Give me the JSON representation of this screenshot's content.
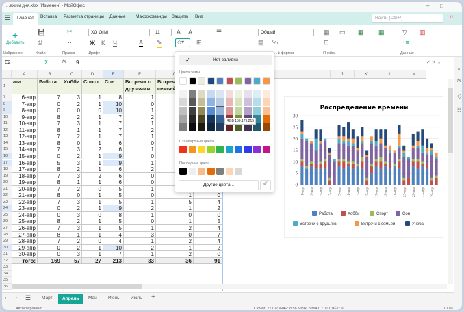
{
  "window": {
    "title": "...ежим дня.xlsx [Изменен] - МойОфис",
    "minimize": "–",
    "maximize": "□"
  },
  "tabs": [
    {
      "label": "Главная",
      "active": true
    },
    {
      "label": "Вставка"
    },
    {
      "label": "Разметка страницы"
    },
    {
      "label": "Данные"
    },
    {
      "label": "Макрокоманды"
    },
    {
      "label": "Защита"
    },
    {
      "label": "Вид"
    }
  ],
  "search": {
    "placeholder": "Найти (Ctrl+/)"
  },
  "user": {
    "initial": "U"
  },
  "ribbon": {
    "add_label": "Добавить",
    "groups": [
      "Избранное",
      "Файл",
      "Правка",
      "Шрифт",
      "...й формат",
      "Ячейки",
      "Данные"
    ],
    "font": "XO Oriel",
    "font_size": "11",
    "number_format": "Общий",
    "bold": "Ж",
    "italic": "К",
    "underline": "Ч"
  },
  "formula": {
    "cell_ref": "E2",
    "value": "9"
  },
  "columns": [
    "A",
    "B",
    "C",
    "D",
    "E",
    "F",
    "G",
    "H",
    "I",
    "J",
    "K",
    "L",
    "M"
  ],
  "header_row": {
    "num": "1",
    "cells": [
      "ата",
      "Работа",
      "Хобби",
      "Спорт",
      "Сон",
      "Встречи с друзьями",
      "Встречи с семьей",
      ""
    ]
  },
  "rows": [
    {
      "num": "7",
      "cells": [
        "6-апр",
        "7",
        "3",
        "1",
        "8",
        "1",
        "",
        ""
      ]
    },
    {
      "num": "8",
      "cells": [
        "7-апр",
        "0",
        "2",
        "1",
        "10",
        "0",
        "",
        ""
      ],
      "hl": true
    },
    {
      "num": "9",
      "cells": [
        "8-апр",
        "0",
        "0",
        "0",
        "10",
        "1",
        "",
        ""
      ],
      "hl": true
    },
    {
      "num": "10",
      "cells": [
        "9-апр",
        "8",
        "2",
        "1",
        "7",
        "2",
        "",
        ""
      ]
    },
    {
      "num": "11",
      "cells": [
        "10-апр",
        "7",
        "3",
        "1",
        "7",
        "1",
        "",
        ""
      ]
    },
    {
      "num": "12",
      "cells": [
        "11-апр",
        "8",
        "1",
        "1",
        "7",
        "2",
        "",
        ""
      ]
    },
    {
      "num": "13",
      "cells": [
        "12-апр",
        "7",
        "2",
        "1",
        "7",
        "1",
        "",
        ""
      ]
    },
    {
      "num": "14",
      "cells": [
        "13-апр",
        "8",
        "0",
        "1",
        "6",
        "0",
        "",
        ""
      ]
    },
    {
      "num": "15",
      "cells": [
        "14-апр",
        "7",
        "3",
        "2",
        "6",
        "1",
        "",
        ""
      ]
    },
    {
      "num": "16",
      "cells": [
        "15-апр",
        "0",
        "2",
        "1",
        "9",
        "0",
        "",
        ""
      ],
      "hl": true
    },
    {
      "num": "17",
      "cells": [
        "16-апр",
        "5",
        "3",
        "1",
        "9",
        "1",
        "",
        ""
      ],
      "hl": true
    },
    {
      "num": "18",
      "cells": [
        "17-апр",
        "8",
        "2",
        "1",
        "6",
        "2",
        "",
        ""
      ]
    },
    {
      "num": "19",
      "cells": [
        "18-апр",
        "7",
        "3",
        "2",
        "6",
        "0",
        "",
        ""
      ]
    },
    {
      "num": "20",
      "cells": [
        "19-апр",
        "8",
        "1",
        "1",
        "6",
        "0",
        "",
        ""
      ]
    },
    {
      "num": "21",
      "cells": [
        "20-апр",
        "7",
        "2",
        "0",
        "5",
        "1",
        "",
        ""
      ]
    },
    {
      "num": "22",
      "cells": [
        "21-апр",
        "8",
        "0",
        "1",
        "5",
        "0",
        "1",
        "0"
      ]
    },
    {
      "num": "23",
      "cells": [
        "22-апр",
        "7",
        "3",
        "1",
        "5",
        "1",
        "5",
        "4"
      ]
    },
    {
      "num": "24",
      "cells": [
        "23-апр",
        "0",
        "2",
        "1",
        "9",
        "2",
        "1",
        "2"
      ],
      "hl": true
    },
    {
      "num": "25",
      "cells": [
        "24-апр",
        "0",
        "3",
        "0",
        "8",
        "1",
        "0",
        "0"
      ]
    },
    {
      "num": "26",
      "cells": [
        "25-апр",
        "8",
        "2",
        "1",
        "5",
        "0",
        "1",
        "5"
      ]
    },
    {
      "num": "27",
      "cells": [
        "26-апр",
        "7",
        "3",
        "1",
        "5",
        "1",
        "2",
        "4"
      ]
    },
    {
      "num": "28",
      "cells": [
        "27-апр",
        "8",
        "1",
        "1",
        "4",
        "3",
        "0",
        "7"
      ]
    },
    {
      "num": "29",
      "cells": [
        "28-апр",
        "7",
        "2",
        "0",
        "4",
        "1",
        "2",
        "4"
      ]
    },
    {
      "num": "30",
      "cells": [
        "29-апр",
        "0",
        "2",
        "1",
        "10",
        "2",
        "1",
        "2"
      ],
      "hl": true
    },
    {
      "num": "31",
      "cells": [
        "30-апр",
        "0",
        "3",
        "1",
        "7",
        "1",
        "2",
        "0"
      ]
    }
  ],
  "total_row": {
    "num": "32",
    "cells": [
      "того:",
      "169",
      "57",
      "27",
      "213",
      "33",
      "36",
      "91"
    ]
  },
  "empty_rows": [
    "33",
    "34",
    "35",
    "36"
  ],
  "fill_popup": {
    "no_fill": "Нет заливки",
    "theme_label": "Цвета темы",
    "standard_label": "Стандартные цвета",
    "recent_label": "Последние цвета",
    "more_colors": "Другие цвета...",
    "tooltip": "RGB 150,179,215",
    "theme": [
      "#ffffff",
      "#000000",
      "#eeece1",
      "#1f497d",
      "#4f81bd",
      "#c0504d",
      "#9bbb59",
      "#8064a2",
      "#4bacc6",
      "#f79646"
    ],
    "shades": [
      [
        "#f2f2f2",
        "#7f7f7f",
        "#ddd9c3",
        "#c6d9f0",
        "#dbe5f1",
        "#f2dcdb",
        "#ebf1dd",
        "#e5e0ec",
        "#dbeef3",
        "#fdeada"
      ],
      [
        "#d8d8d8",
        "#595959",
        "#c4bd97",
        "#8db3e2",
        "#b8cce4",
        "#e5b9b7",
        "#d7e3bc",
        "#ccc1d9",
        "#b7dde8",
        "#fbd5b5"
      ],
      [
        "#bfbfbf",
        "#3f3f3f",
        "#938953",
        "#548dd4",
        "#95b3d7",
        "#d99694",
        "#c3d69b",
        "#b2a2c7",
        "#92cddc",
        "#fac08f"
      ],
      [
        "#a5a5a5",
        "#262626",
        "#494429",
        "#17365d",
        "#366092",
        "#953734",
        "#76923c",
        "#5f497a",
        "#31859b",
        "#e36c09"
      ],
      [
        "#7f7f7f",
        "#0c0c0c",
        "#1d1b10",
        "#0f243e",
        "#244061",
        "#632423",
        "#4f6128",
        "#3f3151",
        "#205867",
        "#974806"
      ]
    ],
    "standard": [
      "#f0311b",
      "#f7941d",
      "#fcd72b",
      "#9ad42a",
      "#2bb54a",
      "#1aa7c6",
      "#1e73e8",
      "#2d3be8",
      "#8b2fd6",
      "#c4168a"
    ],
    "recent": [
      "#000000",
      "#eeeeee",
      "#f8bc8a",
      "#e36c09",
      "#7f7f7f",
      "#fbd5b5",
      "#d8d8d8"
    ]
  },
  "chart_data": {
    "type": "bar",
    "stacked": true,
    "title": "Распределение времени",
    "ylim": [
      0,
      30
    ],
    "yticks": [
      0,
      5,
      10,
      15,
      20,
      25,
      30
    ],
    "grid": true,
    "legend": "bottom",
    "categories": [
      "1-апр",
      "2-апр",
      "3-апр",
      "4-апр",
      "5-апр",
      "6-апр",
      "7-апр",
      "8-апр",
      "9-апр",
      "10-апр",
      "11-апр",
      "12-апр",
      "13-апр",
      "14-апр",
      "15-апр",
      "16-апр",
      "17-апр",
      "18-апр",
      "19-апр",
      "20-апр",
      "21-апр",
      "22-апр",
      "23-апр",
      "24-апр",
      "25-апр",
      "26-апр",
      "27-апр",
      "28-апр",
      "29-апр",
      "30-апр"
    ],
    "xtick_labels": [
      "1-апр",
      "3-апр",
      "5-апр",
      "7-апр",
      "9-апр",
      "11-апр",
      "13-апр",
      "15-апр",
      "17-апр",
      "19-апр",
      "21-апр",
      "23-апр",
      "25-апр",
      "27-апр",
      "29-апр"
    ],
    "series": [
      {
        "name": "Работа",
        "color": "#4f81bd",
        "values": [
          8,
          7,
          8,
          7,
          7,
          7,
          0,
          0,
          8,
          7,
          8,
          7,
          8,
          7,
          0,
          5,
          8,
          7,
          8,
          7,
          8,
          7,
          0,
          0,
          8,
          7,
          8,
          7,
          0,
          0
        ]
      },
      {
        "name": "Хобби",
        "color": "#c0504d",
        "values": [
          2,
          0,
          1,
          2,
          2,
          3,
          2,
          0,
          2,
          3,
          1,
          2,
          0,
          3,
          2,
          3,
          2,
          3,
          1,
          2,
          0,
          3,
          2,
          3,
          2,
          3,
          1,
          2,
          2,
          3
        ]
      },
      {
        "name": "Спорт",
        "color": "#9bbb59",
        "values": [
          1,
          1,
          1,
          0,
          1,
          1,
          1,
          0,
          1,
          1,
          1,
          1,
          1,
          2,
          1,
          1,
          1,
          2,
          1,
          0,
          1,
          1,
          1,
          0,
          1,
          1,
          1,
          0,
          1,
          1
        ]
      },
      {
        "name": "Сон",
        "color": "#8064a2",
        "values": [
          9,
          11,
          8,
          6,
          8,
          8,
          10,
          10,
          7,
          7,
          7,
          7,
          6,
          6,
          9,
          9,
          6,
          6,
          6,
          5,
          5,
          5,
          9,
          8,
          5,
          5,
          4,
          4,
          10,
          7
        ]
      },
      {
        "name": "Встречи с друзьями",
        "color": "#4bacc6",
        "values": [
          2,
          1,
          0,
          5,
          0,
          1,
          0,
          1,
          2,
          1,
          2,
          1,
          0,
          1,
          0,
          1,
          2,
          0,
          0,
          1,
          0,
          1,
          2,
          1,
          0,
          1,
          3,
          1,
          2,
          1
        ]
      },
      {
        "name": "Встречи с семьей",
        "color": "#f79646",
        "values": [
          1,
          0,
          1,
          0,
          1,
          0,
          1,
          0,
          1,
          2,
          1,
          2,
          1,
          2,
          1,
          2,
          0,
          2,
          1,
          2,
          1,
          5,
          1,
          0,
          1,
          2,
          0,
          2,
          1,
          2
        ]
      },
      {
        "name": "Учеба",
        "color": "#254a7a",
        "values": [
          5,
          0,
          0,
          4,
          5,
          0,
          2,
          0,
          5,
          4,
          7,
          4,
          5,
          4,
          2,
          0,
          5,
          4,
          7,
          0,
          0,
          4,
          2,
          0,
          5,
          4,
          7,
          4,
          2,
          0
        ]
      }
    ]
  },
  "sheets": [
    {
      "label": "Март"
    },
    {
      "label": "Апрель",
      "active": true
    },
    {
      "label": "Май"
    },
    {
      "label": "Июнь"
    },
    {
      "label": "Июль"
    }
  ],
  "status": {
    "left": "Автосохранено",
    "right": "СУММ: 77  СРЗНАЧ: 8,56  МИН: 8  МАКС: 11  СЧЁТ: 9",
    "zoom": "100%"
  }
}
